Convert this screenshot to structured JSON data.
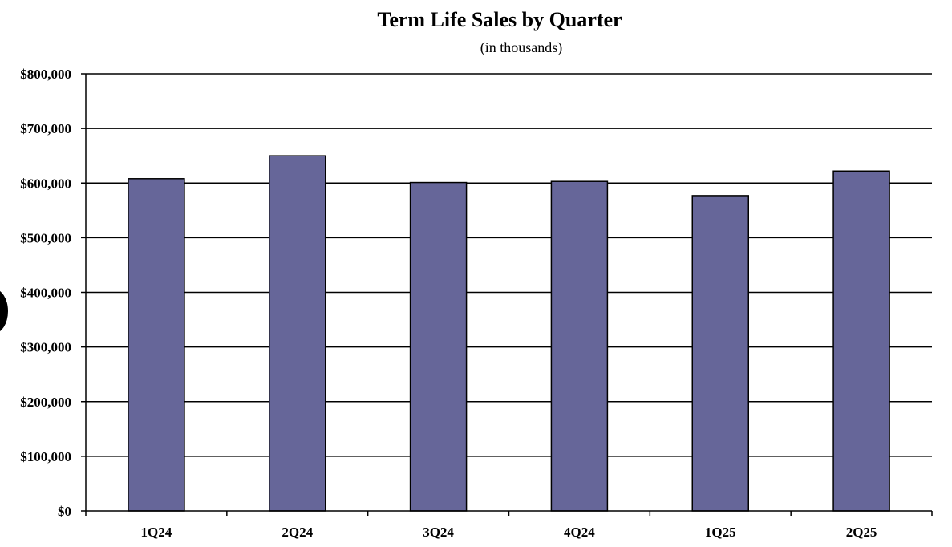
{
  "chart_data": {
    "type": "bar",
    "title": "Term Life Sales by Quarter",
    "subtitle": "(in thousands)",
    "xlabel": "",
    "ylabel": "",
    "categories": [
      "1Q24",
      "2Q24",
      "3Q24",
      "4Q24",
      "1Q25",
      "2Q25"
    ],
    "values": [
      608000,
      650000,
      601000,
      603000,
      577000,
      622000
    ],
    "ylim": [
      0,
      800000
    ],
    "yticks": [
      0,
      100000,
      200000,
      300000,
      400000,
      500000,
      600000,
      700000,
      800000
    ],
    "ytick_labels": [
      "$0",
      "$100,000",
      "$200,000",
      "$300,000",
      "$400,000",
      "$500,000",
      "$600,000",
      "$700,000",
      "$800,000"
    ],
    "grid": true,
    "legend": "none",
    "colors": {
      "bar_fill": "#666699",
      "bar_stroke": "#000000",
      "grid": "#000000"
    }
  }
}
